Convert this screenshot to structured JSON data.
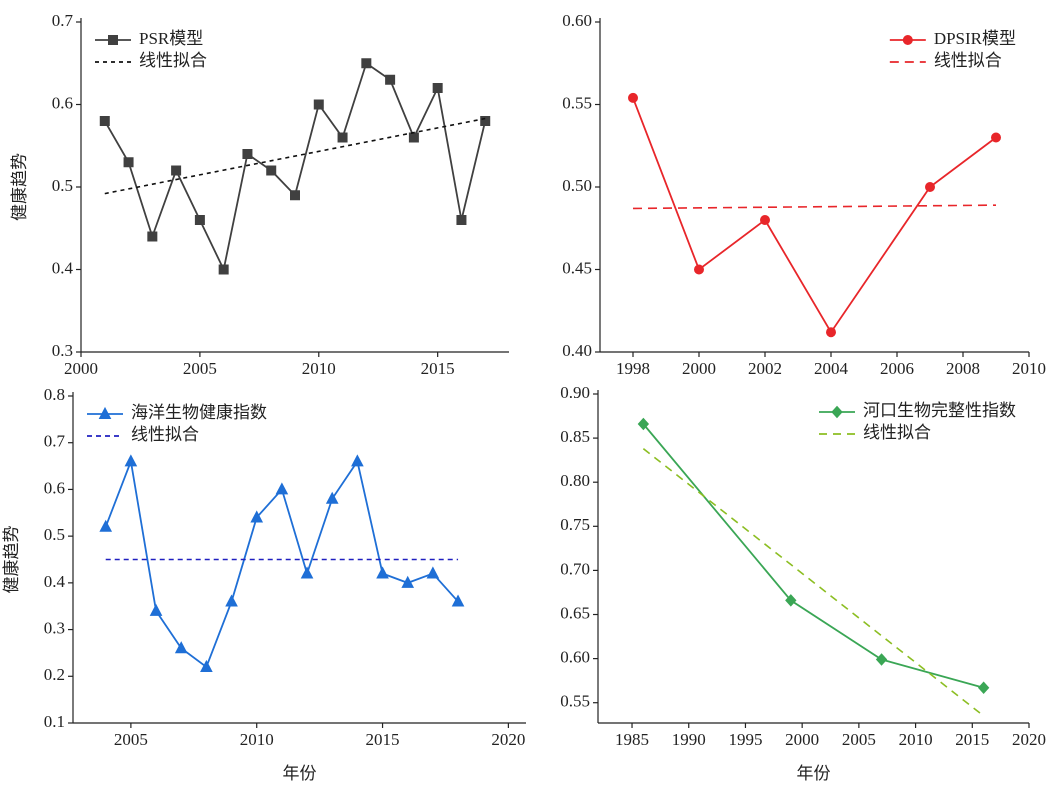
{
  "chart_data": [
    {
      "type": "line",
      "ylabel": "健康趋势",
      "legend": "upper left",
      "x": [
        2001,
        2002,
        2003,
        2004,
        2005,
        2006,
        2007,
        2008,
        2009,
        2010,
        2011,
        2012,
        2013,
        2014,
        2015,
        2016,
        2017
      ],
      "xlim": [
        2000,
        2018
      ],
      "xticks": [
        2000,
        2005,
        2010,
        2015
      ],
      "ylim": [
        0.3,
        0.7
      ],
      "yticks": [
        0.3,
        0.4,
        0.5,
        0.6,
        0.7
      ],
      "series": [
        {
          "name": "PSR模型",
          "color": "#404040",
          "marker": "square",
          "values": [
            0.58,
            0.53,
            0.44,
            0.52,
            0.46,
            0.4,
            0.54,
            0.52,
            0.49,
            0.6,
            0.56,
            0.65,
            0.63,
            0.56,
            0.62,
            0.46,
            0.58
          ]
        },
        {
          "name": "线性拟合",
          "color": "#111111",
          "dash": "4,4",
          "x": [
            2001,
            2017
          ],
          "values": [
            0.492,
            0.583
          ]
        }
      ]
    },
    {
      "type": "line",
      "legend": "upper right",
      "x": [
        1998,
        2000,
        2002,
        2004,
        2007,
        2009
      ],
      "xlim": [
        1997,
        2010
      ],
      "xticks": [
        1998,
        2000,
        2002,
        2004,
        2006,
        2008,
        2010
      ],
      "ylim": [
        0.4,
        0.6
      ],
      "yticks": [
        {
          "value": 0.4,
          "label": "0.40"
        },
        {
          "value": 0.45,
          "label": "0.45"
        },
        {
          "value": 0.5,
          "label": "0.50"
        },
        {
          "value": 0.55,
          "label": "0.55"
        },
        {
          "value": 0.6,
          "label": "0.60"
        }
      ],
      "series": [
        {
          "name": "DPSIR模型",
          "color": "#e8262a",
          "marker": "circle",
          "values": [
            0.554,
            0.45,
            0.48,
            0.412,
            0.5,
            0.53
          ]
        },
        {
          "name": "线性拟合",
          "color": "#e8262a",
          "dash": "9,6",
          "x": [
            1998,
            2009
          ],
          "values": [
            0.487,
            0.489
          ]
        }
      ]
    },
    {
      "type": "line",
      "ylabel": "健康趋势",
      "xlabel": "年份",
      "legend": "upper left",
      "x": [
        2004,
        2005,
        2006,
        2007,
        2008,
        2009,
        2010,
        2011,
        2012,
        2013,
        2014,
        2015,
        2016,
        2017,
        2018
      ],
      "xlim": [
        2002.7,
        2020.7
      ],
      "xticks": [
        2005,
        2010,
        2015,
        2020
      ],
      "ylim": [
        0.1,
        0.8
      ],
      "yticks": [
        0.1,
        0.2,
        0.3,
        0.4,
        0.5,
        0.6,
        0.7,
        0.8
      ],
      "series": [
        {
          "name": "海洋生物健康指数",
          "color": "#1f6fd6",
          "marker": "triangle",
          "values": [
            0.52,
            0.66,
            0.34,
            0.26,
            0.22,
            0.36,
            0.54,
            0.6,
            0.42,
            0.58,
            0.66,
            0.42,
            0.4,
            0.42,
            0.36
          ]
        },
        {
          "name": "线性拟合",
          "color": "#2020c0",
          "dash": "5,4",
          "x": [
            2004,
            2018
          ],
          "values": [
            0.45,
            0.45
          ]
        }
      ]
    },
    {
      "type": "line",
      "xlabel": "年份",
      "legend": "upper right",
      "x": [
        1986,
        1999,
        2007,
        2016
      ],
      "xlim": [
        1982,
        2020
      ],
      "xticks": [
        1985,
        1990,
        1995,
        2000,
        2005,
        2010,
        2015,
        2020
      ],
      "ylim": [
        0.527,
        0.9
      ],
      "yticks": [
        {
          "value": 0.55,
          "label": "0.55"
        },
        {
          "value": 0.6,
          "label": "0.60"
        },
        {
          "value": 0.65,
          "label": "0.65"
        },
        {
          "value": 0.7,
          "label": "0.70"
        },
        {
          "value": 0.75,
          "label": "0.75"
        },
        {
          "value": 0.8,
          "label": "0.80"
        },
        {
          "value": 0.85,
          "label": "0.85"
        },
        {
          "value": 0.9,
          "label": "0.90"
        }
      ],
      "series": [
        {
          "name": "河口生物完整性指数",
          "color": "#3aa655",
          "marker": "diamond",
          "values": [
            0.866,
            0.666,
            0.599,
            0.567
          ]
        },
        {
          "name": "线性拟合",
          "color": "#8cbe22",
          "dash": "8,6",
          "x": [
            1986,
            2016
          ],
          "values": [
            0.838,
            0.535
          ]
        }
      ]
    }
  ]
}
